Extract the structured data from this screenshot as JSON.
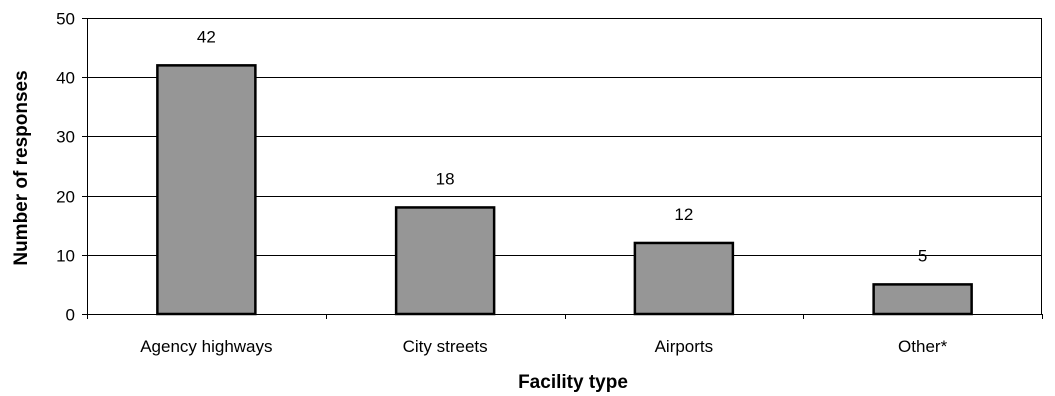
{
  "chart_data": {
    "type": "bar",
    "title": "",
    "xlabel": "Facility type",
    "ylabel": "Number of responses",
    "categories": [
      "Agency highways",
      "City streets",
      "Airports",
      "Other*"
    ],
    "values": [
      42,
      18,
      12,
      5
    ],
    "data_labels": [
      "42",
      "18",
      "12",
      "5"
    ],
    "ylim": [
      0,
      50
    ],
    "yticks": [
      0,
      10,
      20,
      30,
      40,
      50
    ],
    "grid": true,
    "legend": "none",
    "bar_color": "#969696",
    "bar_edge_color": "#000000",
    "grid_color": "#000000"
  }
}
